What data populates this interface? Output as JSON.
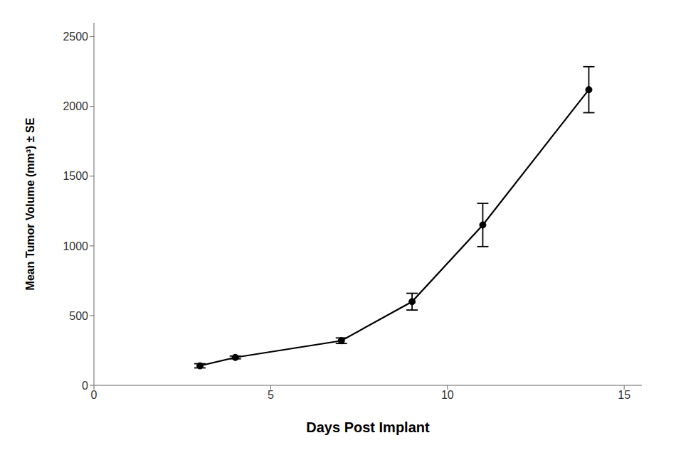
{
  "chart_data": {
    "type": "line",
    "x": [
      3,
      4,
      7,
      9,
      11,
      14
    ],
    "values": [
      140,
      200,
      320,
      600,
      1150,
      2120
    ],
    "yerr": [
      15,
      10,
      20,
      60,
      155,
      165
    ],
    "xlabel": "Days Post Implant",
    "ylabel": "Mean Tumor Volume (mm³) ± SE",
    "xlim": [
      0,
      15.5
    ],
    "ylim": [
      0,
      2600
    ],
    "xticks": [
      0,
      5,
      10,
      15
    ],
    "yticks": [
      0,
      500,
      1000,
      1500,
      2000,
      2500
    ],
    "color": "#000000",
    "marker": "circle",
    "line_style": "solid",
    "grid": false
  }
}
